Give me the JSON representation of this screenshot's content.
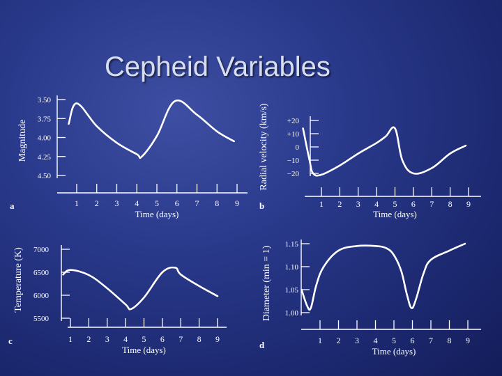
{
  "slide": {
    "title": "Cepheid Variables"
  },
  "chart_data": [
    {
      "type": "line",
      "panel": "a",
      "xlabel": "Time (days)",
      "ylabel": "Magnitude",
      "x_ticks": [
        1,
        2,
        3,
        4,
        5,
        6,
        7,
        8,
        9
      ],
      "y_ticks": [
        "3.50",
        "3.75",
        "4.00",
        "4.25",
        "4.50"
      ],
      "ylim": [
        3.5,
        4.5
      ],
      "y_inverted": true,
      "xlim": [
        0.0,
        9.5
      ],
      "series": [
        {
          "x": [
            0.6,
            1.0,
            2.0,
            3.0,
            4.0,
            4.25,
            5.0,
            5.9,
            7.0,
            8.0,
            8.85
          ],
          "y": [
            3.82,
            3.55,
            3.85,
            4.07,
            4.22,
            4.25,
            3.98,
            3.52,
            3.7,
            3.92,
            4.05
          ]
        }
      ]
    },
    {
      "type": "line",
      "panel": "b",
      "xlabel": "Time (days)",
      "ylabel": "Radial velocity (km/s)",
      "x_ticks": [
        1,
        2,
        3,
        4,
        5,
        6,
        7,
        8,
        9
      ],
      "y_ticks": [
        "+20",
        "+10",
        "0",
        "−10",
        "−20"
      ],
      "ylim": [
        -20,
        20
      ],
      "xlim": [
        0.0,
        9.5
      ],
      "series": [
        {
          "x": [
            0.0,
            0.35,
            0.55,
            1.0,
            2.0,
            3.0,
            4.0,
            4.5,
            5.0,
            5.4,
            6.0,
            7.0,
            8.0,
            8.85
          ],
          "y": [
            14,
            -10,
            -20,
            -21,
            -14,
            -5,
            3,
            8,
            14,
            -10,
            -20,
            -16,
            -5,
            1
          ]
        }
      ]
    },
    {
      "type": "line",
      "panel": "c",
      "xlabel": "Time (days)",
      "ylabel": "Temperature (K)",
      "x_ticks": [
        1,
        2,
        3,
        4,
        5,
        6,
        7,
        8,
        9
      ],
      "y_ticks": [
        "7000",
        "6500",
        "6000",
        "5500"
      ],
      "ylim": [
        5500,
        7000
      ],
      "xlim": [
        0.0,
        9.5
      ],
      "series": [
        {
          "x": [
            0.6,
            1.0,
            2.0,
            3.0,
            4.0,
            4.3,
            5.0,
            6.0,
            6.7,
            7.0,
            8.0,
            9.0
          ],
          "y": [
            6450,
            6550,
            6440,
            6150,
            5800,
            5700,
            5950,
            6500,
            6600,
            6450,
            6200,
            5980
          ]
        }
      ]
    },
    {
      "type": "line",
      "panel": "d",
      "xlabel": "Time (days)",
      "ylabel": "Diameter (min = 1)",
      "x_ticks": [
        1,
        2,
        3,
        4,
        5,
        6,
        7,
        8,
        9
      ],
      "y_ticks": [
        "1.15",
        "1.10",
        "1.05",
        "1.00"
      ],
      "ylim": [
        1.0,
        1.15
      ],
      "xlim": [
        0.0,
        9.5
      ],
      "series": [
        {
          "x": [
            0.0,
            0.3,
            0.5,
            0.8,
            1.2,
            2.0,
            3.0,
            4.0,
            4.6,
            5.0,
            5.4,
            5.7,
            5.95,
            6.2,
            6.6,
            7.0,
            8.0,
            8.85
          ],
          "y": [
            1.05,
            1.015,
            1.01,
            1.06,
            1.1,
            1.135,
            1.145,
            1.145,
            1.14,
            1.125,
            1.09,
            1.04,
            1.01,
            1.03,
            1.085,
            1.115,
            1.135,
            1.15
          ]
        }
      ]
    }
  ]
}
